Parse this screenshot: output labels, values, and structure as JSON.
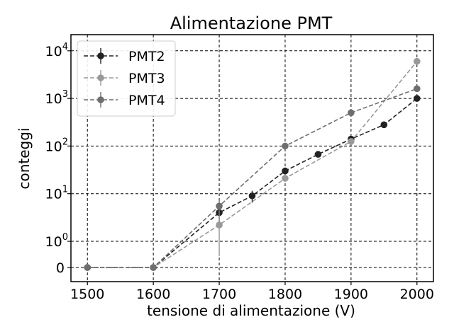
{
  "chart_data": {
    "type": "line",
    "title": "Alimentazione PMT",
    "xlabel": "tensione di alimentazione  (V)",
    "ylabel": "conteggi",
    "xlim": [
      1475,
      2025
    ],
    "x_ticks": [
      1500,
      1600,
      1700,
      1800,
      1900,
      2000
    ],
    "y_scale": "symlog",
    "y_ticks": [
      {
        "value": 0,
        "base": "0",
        "exp": ""
      },
      {
        "value": 1,
        "base": "10",
        "exp": "0"
      },
      {
        "value": 10,
        "base": "10",
        "exp": "1"
      },
      {
        "value": 100,
        "base": "10",
        "exp": "2"
      },
      {
        "value": 1000,
        "base": "10",
        "exp": "3"
      },
      {
        "value": 10000,
        "base": "10",
        "exp": "4"
      }
    ],
    "grid": true,
    "grid_style": "dashed",
    "legend_position": "upper-left",
    "series": [
      {
        "name": "PMT2",
        "color": "#222222",
        "x": [
          1500,
          1600,
          1700,
          1750,
          1800,
          1850,
          1900,
          1950,
          2000
        ],
        "y": [
          0,
          0,
          4,
          9,
          30,
          67,
          140,
          280,
          1000
        ],
        "yerr": [
          0,
          0,
          1.5,
          2.5,
          4,
          6,
          10,
          15,
          30
        ]
      },
      {
        "name": "PMT3",
        "color": "#999999",
        "x": [
          1500,
          1600,
          1700,
          1800,
          1900,
          2000
        ],
        "y": [
          0,
          0,
          2.2,
          21,
          125,
          6000
        ],
        "yerr": [
          0,
          0,
          2.2,
          3,
          10,
          70
        ]
      },
      {
        "name": "PMT4",
        "color": "#6e6e6e",
        "x": [
          1500,
          1600,
          1700,
          1800,
          1900,
          2000
        ],
        "y": [
          0,
          0,
          5.5,
          100,
          500,
          1600
        ],
        "yerr": [
          0,
          0,
          2,
          10,
          20,
          40
        ]
      }
    ]
  }
}
